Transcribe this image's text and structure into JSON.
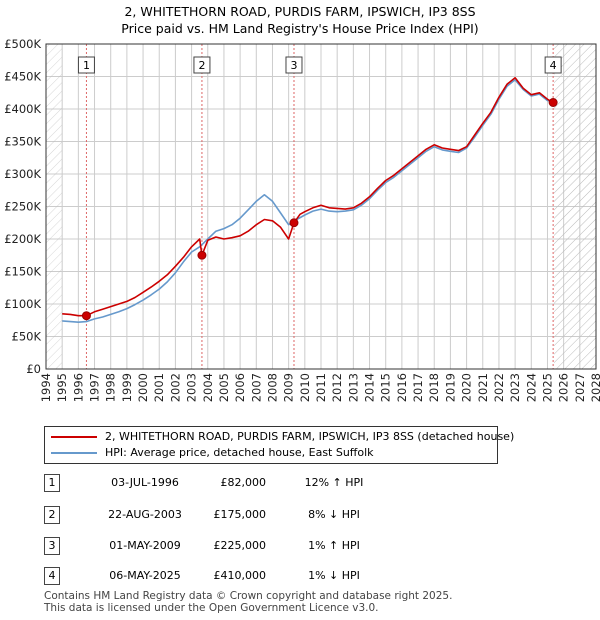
{
  "header": {
    "title_line1": "2, WHITETHORN ROAD, PURDIS FARM, IPSWICH, IP3 8SS",
    "title_line2": "Price paid vs. HM Land Registry's House Price Index (HPI)"
  },
  "colors": {
    "property": "#cc0000",
    "hpi": "#6699cc",
    "grid": "#cccccc",
    "marker_line": "#dd6666",
    "future_hatch": "#bbbbbb"
  },
  "legend": {
    "property_label": "2, WHITETHORN ROAD, PURDIS FARM, IPSWICH, IP3 8SS (detached house)",
    "hpi_label": "HPI: Average price, detached house, East Suffolk"
  },
  "sales": [
    {
      "num": "1",
      "date": "03-JUL-1996",
      "price": "£82,000",
      "hpi": "12% ↑ HPI"
    },
    {
      "num": "2",
      "date": "22-AUG-2003",
      "price": "£175,000",
      "hpi": "8% ↓ HPI"
    },
    {
      "num": "3",
      "date": "01-MAY-2009",
      "price": "£225,000",
      "hpi": "1% ↑ HPI"
    },
    {
      "num": "4",
      "date": "06-MAY-2025",
      "price": "£410,000",
      "hpi": "1% ↓ HPI"
    }
  ],
  "footer": {
    "line1": "Contains HM Land Registry data © Crown copyright and database right 2025.",
    "line2": "This data is licensed under the Open Government Licence v3.0."
  },
  "chart_data": {
    "type": "line",
    "title": "2, WHITETHORN ROAD, PURDIS FARM, IPSWICH, IP3 8SS — Price paid vs. HM Land Registry's House Price Index (HPI)",
    "xlabel": "",
    "ylabel": "",
    "xlim": [
      1994,
      2028
    ],
    "ylim": [
      0,
      500000
    ],
    "y_ticks": [
      0,
      50000,
      100000,
      150000,
      200000,
      250000,
      300000,
      350000,
      400000,
      450000,
      500000
    ],
    "y_tick_labels": [
      "£0",
      "£50K",
      "£100K",
      "£150K",
      "£200K",
      "£250K",
      "£300K",
      "£350K",
      "£400K",
      "£450K",
      "£500K"
    ],
    "x_ticks": [
      1994,
      1995,
      1996,
      1997,
      1998,
      1999,
      2000,
      2001,
      2002,
      2003,
      2004,
      2005,
      2006,
      2007,
      2008,
      2009,
      2010,
      2011,
      2012,
      2013,
      2014,
      2015,
      2016,
      2017,
      2018,
      2019,
      2020,
      2021,
      2022,
      2023,
      2024,
      2025,
      2026,
      2027,
      2028
    ],
    "data_start": 1995.0,
    "data_end": 2025.4,
    "grid": true,
    "legend_position": "below",
    "series": [
      {
        "name": "2, WHITETHORN ROAD, PURDIS FARM, IPSWICH, IP3 8SS (detached house)",
        "x": [
          1995.0,
          1995.5,
          1996.0,
          1996.5,
          1997.0,
          1997.5,
          1998.0,
          1998.5,
          1999.0,
          1999.5,
          2000.0,
          2000.5,
          2001.0,
          2001.5,
          2002.0,
          2002.5,
          2003.0,
          2003.5,
          2003.64,
          2004.0,
          2004.5,
          2005.0,
          2005.5,
          2006.0,
          2006.5,
          2007.0,
          2007.5,
          2008.0,
          2008.5,
          2009.0,
          2009.33,
          2009.7,
          2010.0,
          2010.5,
          2011.0,
          2011.5,
          2012.0,
          2012.5,
          2013.0,
          2013.5,
          2014.0,
          2014.5,
          2015.0,
          2015.5,
          2016.0,
          2016.5,
          2017.0,
          2017.5,
          2018.0,
          2018.5,
          2019.0,
          2019.5,
          2020.0,
          2020.5,
          2021.0,
          2021.5,
          2022.0,
          2022.5,
          2023.0,
          2023.5,
          2024.0,
          2024.5,
          2025.0,
          2025.35
        ],
        "values": [
          85000,
          84000,
          82000,
          82000,
          88000,
          92000,
          96000,
          100000,
          104000,
          110000,
          118000,
          126000,
          135000,
          145000,
          158000,
          172000,
          188000,
          200000,
          175000,
          198000,
          203000,
          200000,
          202000,
          205000,
          212000,
          222000,
          230000,
          228000,
          218000,
          200000,
          225000,
          238000,
          242000,
          248000,
          252000,
          248000,
          247000,
          246000,
          248000,
          255000,
          265000,
          278000,
          290000,
          298000,
          308000,
          318000,
          328000,
          338000,
          345000,
          340000,
          338000,
          336000,
          342000,
          360000,
          378000,
          395000,
          418000,
          438000,
          448000,
          432000,
          422000,
          425000,
          415000,
          410000
        ]
      },
      {
        "name": "HPI: Average price, detached house, East Suffolk",
        "x": [
          1995.0,
          1995.5,
          1996.0,
          1996.5,
          1997.0,
          1997.5,
          1998.0,
          1998.5,
          1999.0,
          1999.5,
          2000.0,
          2000.5,
          2001.0,
          2001.5,
          2002.0,
          2002.5,
          2003.0,
          2003.5,
          2004.0,
          2004.5,
          2005.0,
          2005.5,
          2006.0,
          2006.5,
          2007.0,
          2007.5,
          2008.0,
          2008.5,
          2009.0,
          2009.5,
          2010.0,
          2010.5,
          2011.0,
          2011.5,
          2012.0,
          2012.5,
          2013.0,
          2013.5,
          2014.0,
          2014.5,
          2015.0,
          2015.5,
          2016.0,
          2016.5,
          2017.0,
          2017.5,
          2018.0,
          2018.5,
          2019.0,
          2019.5,
          2020.0,
          2020.5,
          2021.0,
          2021.5,
          2022.0,
          2022.5,
          2023.0,
          2023.5,
          2024.0,
          2024.5,
          2025.0,
          2025.35
        ],
        "values": [
          74000,
          73000,
          72000,
          73000,
          77000,
          80000,
          84000,
          88000,
          93000,
          99000,
          106000,
          114000,
          123000,
          134000,
          148000,
          165000,
          180000,
          188000,
          200000,
          212000,
          216000,
          222000,
          232000,
          245000,
          258000,
          268000,
          258000,
          240000,
          222000,
          230000,
          237000,
          243000,
          246000,
          243000,
          242000,
          243000,
          245000,
          252000,
          262000,
          275000,
          287000,
          295000,
          305000,
          315000,
          325000,
          335000,
          342000,
          337000,
          335000,
          333000,
          340000,
          357000,
          375000,
          392000,
          415000,
          435000,
          445000,
          430000,
          420000,
          423000,
          413000,
          412000
        ]
      }
    ],
    "sale_markers": [
      {
        "num": "1",
        "x": 1996.5,
        "y": 82000
      },
      {
        "num": "2",
        "x": 2003.64,
        "y": 175000
      },
      {
        "num": "3",
        "x": 2009.33,
        "y": 225000
      },
      {
        "num": "4",
        "x": 2025.35,
        "y": 410000
      }
    ]
  }
}
